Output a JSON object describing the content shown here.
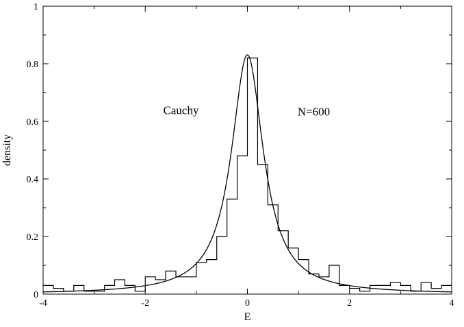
{
  "chart_data": {
    "type": "line",
    "title": "",
    "xlabel": "E",
    "ylabel": "density",
    "xlim": [
      -4,
      4
    ],
    "ylim": [
      0,
      1
    ],
    "grid": false,
    "legend": "none",
    "x_ticks": [
      "-4",
      "-2",
      "0",
      "2",
      "4"
    ],
    "y_ticks": [
      "0",
      "0.2",
      "0.4",
      "0.6",
      "0.8",
      "1"
    ],
    "annotations": [
      {
        "key": "cauchy",
        "text": "Cauchy",
        "x": -1.3,
        "y": 0.625
      },
      {
        "key": "n",
        "text": "N=600",
        "x": 1.3,
        "y": 0.62
      }
    ],
    "series": [
      {
        "kind": "histogram",
        "bin_edges": [
          -4.0,
          -3.8,
          -3.6,
          -3.4,
          -3.2,
          -3.0,
          -2.8,
          -2.6,
          -2.4,
          -2.2,
          -2.0,
          -1.8,
          -1.6,
          -1.4,
          -1.2,
          -1.0,
          -0.8,
          -0.6,
          -0.4,
          -0.2,
          0.0,
          0.2,
          0.4,
          0.6,
          0.8,
          1.0,
          1.2,
          1.4,
          1.6,
          1.8,
          2.0,
          2.2,
          2.4,
          2.6,
          2.8,
          3.0,
          3.2,
          3.4,
          3.6,
          3.8,
          4.0
        ],
        "values": [
          0.03,
          0.02,
          0.01,
          0.03,
          0.01,
          0.01,
          0.03,
          0.05,
          0.03,
          0.01,
          0.06,
          0.05,
          0.08,
          0.06,
          0.06,
          0.11,
          0.12,
          0.2,
          0.33,
          0.48,
          0.82,
          0.45,
          0.31,
          0.22,
          0.16,
          0.12,
          0.07,
          0.06,
          0.1,
          0.03,
          0.02,
          0.01,
          0.03,
          0.03,
          0.04,
          0.03,
          0.01,
          0.04,
          0.02,
          0.03
        ]
      },
      {
        "kind": "curve",
        "function": "cauchy",
        "location": 0.0,
        "scale": 0.383,
        "peak": 0.831,
        "x_range": [
          -4,
          4
        ]
      }
    ]
  }
}
